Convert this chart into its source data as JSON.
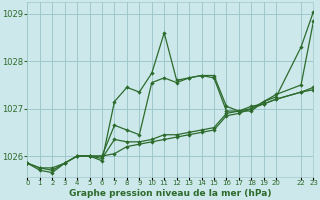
{
  "title": "Graphe pression niveau de la mer (hPa)",
  "bg_color": "#cce8ea",
  "grid_color": "#a0c8cc",
  "line_color": "#2d6b2d",
  "xlim": [
    0,
    23
  ],
  "ylim": [
    1025.55,
    1029.25
  ],
  "yticks": [
    1026,
    1027,
    1028,
    1029
  ],
  "xtick_positions": [
    0,
    1,
    2,
    3,
    4,
    5,
    6,
    7,
    8,
    9,
    10,
    11,
    12,
    13,
    14,
    15,
    16,
    17,
    18,
    19,
    20,
    22,
    23
  ],
  "xtick_labels": [
    "0",
    "1",
    "2",
    "3",
    "4",
    "5",
    "6",
    "7",
    "8",
    "9",
    "10",
    "11",
    "12",
    "13",
    "14",
    "15",
    "16",
    "17",
    "18",
    "19",
    "20",
    "22",
    "23"
  ],
  "series1_x": [
    0,
    1,
    2,
    3,
    4,
    5,
    6,
    7,
    8,
    9,
    10,
    11,
    12,
    13,
    14,
    15,
    16,
    17,
    18,
    19,
    20,
    22,
    23
  ],
  "series1_y": [
    1025.85,
    1025.75,
    1025.7,
    1025.85,
    1026.0,
    1026.0,
    1025.95,
    1026.35,
    1026.3,
    1026.3,
    1026.35,
    1026.45,
    1026.45,
    1026.5,
    1026.55,
    1026.6,
    1026.9,
    1026.95,
    1027.05,
    1027.1,
    1027.2,
    1027.35,
    1027.45
  ],
  "series2_x": [
    0,
    1,
    2,
    3,
    4,
    5,
    6,
    7,
    8,
    9,
    10,
    11,
    12,
    13,
    14,
    15,
    16,
    17,
    18,
    19,
    20,
    22,
    23
  ],
  "series2_y": [
    1025.85,
    1025.7,
    1025.65,
    1025.85,
    1026.0,
    1026.0,
    1026.0,
    1026.05,
    1026.2,
    1026.25,
    1026.3,
    1026.35,
    1026.4,
    1026.45,
    1026.5,
    1026.55,
    1026.85,
    1026.9,
    1027.0,
    1027.1,
    1027.2,
    1027.35,
    1027.4
  ],
  "series3_x": [
    0,
    1,
    2,
    3,
    4,
    5,
    6,
    7,
    8,
    9,
    10,
    11,
    12,
    13,
    14,
    15,
    16,
    17,
    18,
    19,
    20,
    22,
    23
  ],
  "series3_y": [
    1025.85,
    1025.75,
    1025.75,
    1025.85,
    1026.0,
    1026.0,
    1026.0,
    1026.65,
    1026.55,
    1026.45,
    1027.55,
    1027.65,
    1027.55,
    1027.65,
    1027.7,
    1027.65,
    1026.95,
    1026.95,
    1027.0,
    1027.15,
    1027.25,
    1028.3,
    1029.05
  ],
  "series4_x": [
    4,
    5,
    6,
    7,
    8,
    9,
    10,
    11,
    12,
    13,
    14,
    15,
    16,
    17,
    18,
    19,
    20,
    22,
    23
  ],
  "series4_y": [
    1026.0,
    1026.0,
    1025.9,
    1027.15,
    1027.45,
    1027.35,
    1027.75,
    1028.6,
    1027.6,
    1027.65,
    1027.7,
    1027.7,
    1027.05,
    1026.95,
    1026.95,
    1027.15,
    1027.3,
    1027.5,
    1028.85
  ]
}
